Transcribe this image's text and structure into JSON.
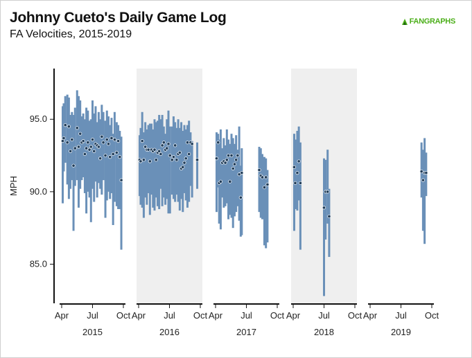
{
  "header": {
    "title": "Johnny Cueto's Daily Game Log",
    "subtitle": "FA Velocities, 2015-2019",
    "logo_text": "FANGRAPHS",
    "logo_icon": "fangraphs-leaf-icon"
  },
  "colors": {
    "bar": "#6a90b8",
    "dot_fill": "#1f3b57",
    "dot_stroke": "#e8eef5",
    "shade": "#efefef",
    "logo": "#4caf1a"
  },
  "chart_data": {
    "type": "range-bar",
    "title": "Johnny Cueto's Daily Game Log",
    "subtitle": "FA Velocities, 2015-2019",
    "ylabel": "MPH",
    "ylim": [
      82.3,
      98.5
    ],
    "yticks": [
      85.0,
      90.0,
      95.0
    ],
    "ytick_labels": [
      "85.0",
      "90.0",
      "95.0"
    ],
    "xtick_labels": [
      "Apr",
      "Jul",
      "Oct"
    ],
    "grid": false,
    "shaded_panels": [
      "2016",
      "2018"
    ],
    "panels": [
      {
        "year": "2015",
        "games": [
          {
            "month": 4.1,
            "low": 89.2,
            "high": 95.9,
            "avg": 93.5
          },
          {
            "month": 4.2,
            "low": 91.4,
            "high": 96.1,
            "avg": 93.7
          },
          {
            "month": 4.35,
            "low": 92.0,
            "high": 96.6,
            "avg": 94.6
          },
          {
            "month": 4.55,
            "low": 90.5,
            "high": 96.7,
            "avg": 93.4
          },
          {
            "month": 4.7,
            "low": 89.5,
            "high": 96.5,
            "avg": 94.5
          },
          {
            "month": 4.85,
            "low": 90.2,
            "high": 95.3,
            "avg": 92.8
          },
          {
            "month": 5.0,
            "low": 90.8,
            "high": 95.5,
            "avg": 93.6
          },
          {
            "month": 5.15,
            "low": 87.3,
            "high": 95.3,
            "avg": 91.8
          },
          {
            "month": 5.3,
            "low": 90.4,
            "high": 95.8,
            "avg": 93.0
          },
          {
            "month": 5.5,
            "low": 90.8,
            "high": 97.0,
            "avg": 94.4
          },
          {
            "month": 5.65,
            "low": 88.9,
            "high": 96.6,
            "avg": 93.1
          },
          {
            "month": 5.8,
            "low": 90.2,
            "high": 96.3,
            "avg": 94.0
          },
          {
            "month": 5.95,
            "low": 90.8,
            "high": 95.2,
            "avg": 93.4
          },
          {
            "month": 6.1,
            "low": 91.0,
            "high": 95.4,
            "avg": 93.5
          },
          {
            "month": 6.25,
            "low": 89.9,
            "high": 95.0,
            "avg": 92.6
          },
          {
            "month": 6.4,
            "low": 88.5,
            "high": 95.8,
            "avg": 93.0
          },
          {
            "month": 6.55,
            "low": 90.0,
            "high": 95.6,
            "avg": 93.4
          },
          {
            "month": 6.7,
            "low": 89.6,
            "high": 94.9,
            "avg": 92.9
          },
          {
            "month": 6.85,
            "low": 87.9,
            "high": 95.0,
            "avg": 93.1
          },
          {
            "month": 7.0,
            "low": 90.2,
            "high": 96.3,
            "avg": 93.6
          },
          {
            "month": 7.15,
            "low": 89.3,
            "high": 95.4,
            "avg": 92.8
          },
          {
            "month": 7.3,
            "low": 90.7,
            "high": 95.9,
            "avg": 93.3
          },
          {
            "month": 7.45,
            "low": 89.6,
            "high": 94.8,
            "avg": 93.2
          },
          {
            "month": 7.6,
            "low": 90.6,
            "high": 95.5,
            "avg": 93.1
          },
          {
            "month": 7.75,
            "low": 90.2,
            "high": 95.0,
            "avg": 92.3
          },
          {
            "month": 7.9,
            "low": 89.8,
            "high": 96.0,
            "avg": 93.8
          },
          {
            "month": 8.05,
            "low": 90.8,
            "high": 95.5,
            "avg": 93.4
          },
          {
            "month": 8.25,
            "low": 88.2,
            "high": 94.9,
            "avg": 92.5
          },
          {
            "month": 8.4,
            "low": 89.4,
            "high": 95.6,
            "avg": 93.6
          },
          {
            "month": 8.55,
            "low": 90.0,
            "high": 95.2,
            "avg": 93.3
          },
          {
            "month": 8.7,
            "low": 89.5,
            "high": 94.6,
            "avg": 92.4
          },
          {
            "month": 8.85,
            "low": 89.9,
            "high": 95.1,
            "avg": 93.7
          },
          {
            "month": 9.0,
            "low": 87.7,
            "high": 94.0,
            "avg": 92.6
          },
          {
            "month": 9.15,
            "low": 89.3,
            "high": 95.5,
            "avg": 93.6
          },
          {
            "month": 9.35,
            "low": 89.0,
            "high": 94.8,
            "avg": 92.7
          },
          {
            "month": 9.5,
            "low": 88.8,
            "high": 94.6,
            "avg": 93.5
          },
          {
            "month": 9.65,
            "low": 88.8,
            "high": 94.2,
            "avg": 92.4
          },
          {
            "month": 9.8,
            "low": 86.0,
            "high": 93.8,
            "avg": 90.8
          }
        ]
      },
      {
        "year": "2016",
        "games": [
          {
            "month": 4.1,
            "low": 89.7,
            "high": 93.9,
            "avg": 92.2
          },
          {
            "month": 4.2,
            "low": 89.1,
            "high": 94.4,
            "avg": 92.1
          },
          {
            "month": 4.35,
            "low": 88.9,
            "high": 95.5,
            "avg": 93.5
          },
          {
            "month": 4.5,
            "low": 88.2,
            "high": 94.1,
            "avg": 92.2
          },
          {
            "month": 4.65,
            "low": 89.6,
            "high": 94.8,
            "avg": 93.1
          },
          {
            "month": 4.8,
            "low": 89.1,
            "high": 94.3,
            "avg": 92.9
          },
          {
            "month": 4.95,
            "low": 89.9,
            "high": 94.6,
            "avg": 92.9
          },
          {
            "month": 5.1,
            "low": 88.4,
            "high": 94.7,
            "avg": 92.1
          },
          {
            "month": 5.25,
            "low": 89.8,
            "high": 94.7,
            "avg": 92.9
          },
          {
            "month": 5.4,
            "low": 88.9,
            "high": 94.3,
            "avg": 92.8
          },
          {
            "month": 5.55,
            "low": 88.7,
            "high": 95.0,
            "avg": 92.9
          },
          {
            "month": 5.7,
            "low": 89.6,
            "high": 94.8,
            "avg": 92.2
          },
          {
            "month": 5.85,
            "low": 89.0,
            "high": 94.9,
            "avg": 92.7
          },
          {
            "month": 6.0,
            "low": 88.8,
            "high": 95.3,
            "avg": 92.8
          },
          {
            "month": 6.15,
            "low": 90.2,
            "high": 95.0,
            "avg": 92.6
          },
          {
            "month": 6.3,
            "low": 89.0,
            "high": 95.3,
            "avg": 93.2
          },
          {
            "month": 6.45,
            "low": 89.6,
            "high": 94.5,
            "avg": 93.4
          },
          {
            "month": 6.6,
            "low": 89.1,
            "high": 94.0,
            "avg": 92.9
          },
          {
            "month": 6.75,
            "low": 89.5,
            "high": 95.0,
            "avg": 93.0
          },
          {
            "month": 6.9,
            "low": 88.5,
            "high": 95.6,
            "avg": 93.3
          },
          {
            "month": 7.05,
            "low": 88.5,
            "high": 94.5,
            "avg": 92.5
          },
          {
            "month": 7.25,
            "low": 89.8,
            "high": 94.5,
            "avg": 92.2
          },
          {
            "month": 7.4,
            "low": 89.5,
            "high": 95.2,
            "avg": 92.4
          },
          {
            "month": 7.55,
            "low": 89.3,
            "high": 94.8,
            "avg": 93.2
          },
          {
            "month": 7.7,
            "low": 89.8,
            "high": 94.4,
            "avg": 92.2
          },
          {
            "month": 7.85,
            "low": 89.3,
            "high": 95.0,
            "avg": 92.6
          },
          {
            "month": 8.0,
            "low": 88.7,
            "high": 94.4,
            "avg": 92.7
          },
          {
            "month": 8.15,
            "low": 89.5,
            "high": 94.8,
            "avg": 91.6
          },
          {
            "month": 8.3,
            "low": 88.6,
            "high": 94.2,
            "avg": 91.7
          },
          {
            "month": 8.45,
            "low": 89.9,
            "high": 94.6,
            "avg": 92.0
          },
          {
            "month": 8.6,
            "low": 89.4,
            "high": 94.3,
            "avg": 92.3
          },
          {
            "month": 8.75,
            "low": 88.9,
            "high": 94.6,
            "avg": 93.4
          },
          {
            "month": 8.9,
            "low": 89.3,
            "high": 94.9,
            "avg": 92.6
          },
          {
            "month": 9.05,
            "low": 90.4,
            "high": 94.1,
            "avg": 93.4
          },
          {
            "month": 9.2,
            "low": 89.6,
            "high": 93.5,
            "avg": 93.3
          },
          {
            "month": 9.7,
            "low": 90.2,
            "high": 93.4,
            "avg": 92.2
          }
        ]
      },
      {
        "year": "2017",
        "games": [
          {
            "month": 4.1,
            "low": 88.6,
            "high": 94.1,
            "avg": 92.3
          },
          {
            "month": 4.25,
            "low": 90.3,
            "high": 94.0,
            "avg": 93.4
          },
          {
            "month": 4.35,
            "low": 87.8,
            "high": 93.6,
            "avg": 90.6
          },
          {
            "month": 4.5,
            "low": 87.4,
            "high": 94.3,
            "avg": 90.7
          },
          {
            "month": 4.65,
            "low": 89.6,
            "high": 93.0,
            "avg": 92.0
          },
          {
            "month": 4.8,
            "low": 88.9,
            "high": 93.7,
            "avg": 92.1
          },
          {
            "month": 4.95,
            "low": 89.0,
            "high": 93.2,
            "avg": 92.0
          },
          {
            "month": 5.1,
            "low": 89.2,
            "high": 94.3,
            "avg": 92.2
          },
          {
            "month": 5.25,
            "low": 88.1,
            "high": 93.6,
            "avg": 92.5
          },
          {
            "month": 5.4,
            "low": 88.4,
            "high": 93.3,
            "avg": 90.7
          },
          {
            "month": 5.55,
            "low": 88.2,
            "high": 94.0,
            "avg": 92.5
          },
          {
            "month": 5.7,
            "low": 87.5,
            "high": 93.7,
            "avg": 91.6
          },
          {
            "month": 5.85,
            "low": 88.3,
            "high": 93.3,
            "avg": 91.9
          },
          {
            "month": 6.0,
            "low": 88.6,
            "high": 93.9,
            "avg": 92.2
          },
          {
            "month": 6.15,
            "low": 89.0,
            "high": 92.9,
            "avg": 92.5
          },
          {
            "month": 6.3,
            "low": 88.0,
            "high": 94.5,
            "avg": 91.2
          },
          {
            "month": 6.45,
            "low": 86.9,
            "high": 91.8,
            "avg": 89.6
          },
          {
            "month": 6.55,
            "low": 87.0,
            "high": 93.0,
            "avg": 91.3
          },
          {
            "month": 8.25,
            "low": 88.6,
            "high": 93.1,
            "avg": 91.5
          },
          {
            "month": 8.4,
            "low": 88.2,
            "high": 93.0,
            "avg": 91.1
          },
          {
            "month": 8.55,
            "low": 88.1,
            "high": 92.6,
            "avg": 91.0
          },
          {
            "month": 8.75,
            "low": 86.3,
            "high": 92.4,
            "avg": 90.3
          },
          {
            "month": 8.9,
            "low": 86.1,
            "high": 92.3,
            "avg": 91.0
          },
          {
            "month": 9.05,
            "low": 86.5,
            "high": 91.5,
            "avg": 90.5
          }
        ]
      },
      {
        "year": "2018",
        "games": [
          {
            "month": 4.1,
            "low": 87.3,
            "high": 94.0,
            "avg": 91.7
          },
          {
            "month": 4.2,
            "low": 88.8,
            "high": 93.6,
            "avg": 90.6
          },
          {
            "month": 4.4,
            "low": 88.7,
            "high": 94.2,
            "avg": 91.3
          },
          {
            "month": 4.55,
            "low": 89.4,
            "high": 94.5,
            "avg": 92.1
          },
          {
            "month": 4.7,
            "low": 86.0,
            "high": 93.4,
            "avg": 90.6
          },
          {
            "month": 7.0,
            "low": 82.8,
            "high": 92.3,
            "avg": 88.9
          },
          {
            "month": 7.15,
            "low": 86.7,
            "high": 92.2,
            "avg": 90.0
          },
          {
            "month": 7.35,
            "low": 87.8,
            "high": 92.9,
            "avg": 90.0
          },
          {
            "month": 7.5,
            "low": 85.5,
            "high": 90.2,
            "avg": 88.3
          }
        ]
      },
      {
        "year": "2019",
        "games": [
          {
            "month": 9.0,
            "low": 89.6,
            "high": 93.4,
            "avg": 91.4
          },
          {
            "month": 9.15,
            "low": 87.3,
            "high": 92.9,
            "avg": 90.8
          },
          {
            "month": 9.3,
            "low": 86.4,
            "high": 93.7,
            "avg": 91.3
          },
          {
            "month": 9.45,
            "low": 89.7,
            "high": 92.7,
            "avg": 91.3
          }
        ]
      }
    ]
  }
}
